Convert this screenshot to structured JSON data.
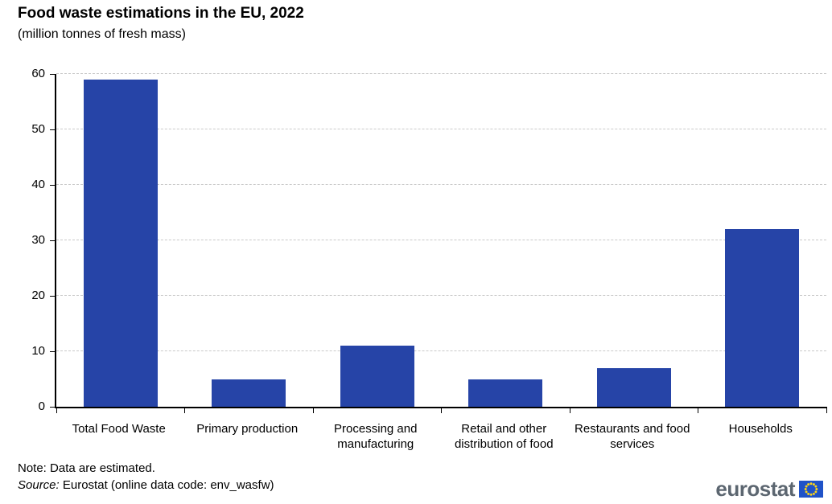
{
  "chart_data": {
    "type": "bar",
    "title": "Food waste estimations in the EU, 2022",
    "subtitle": "(million tonnes of fresh mass)",
    "categories": [
      "Total Food Waste",
      "Primary production",
      "Processing and\nmanufacturing",
      "Retail and other\ndistribution of food",
      "Restaurants and food\nservices",
      "Households"
    ],
    "values": [
      59,
      5,
      11,
      5,
      7,
      32
    ],
    "xlabel": "",
    "ylabel": "",
    "ylim": [
      0,
      60
    ],
    "yticks": [
      0,
      10,
      20,
      30,
      40,
      50,
      60
    ],
    "ytick_step": 10,
    "grid": "horizontal-dashed",
    "legend": "none",
    "bar_color": "#2644A7",
    "gridline_color": "#c9c9c9",
    "axis_color": "#000000"
  },
  "footer": {
    "note": "Note: Data are estimated.",
    "source_label": "Source:",
    "source_text": " Eurostat (online data code: env_wasfw)"
  },
  "logo": {
    "text": "eurostat",
    "text_color": "#5C6670",
    "flag_color": "#2053C8",
    "star_color": "#FFD617"
  }
}
